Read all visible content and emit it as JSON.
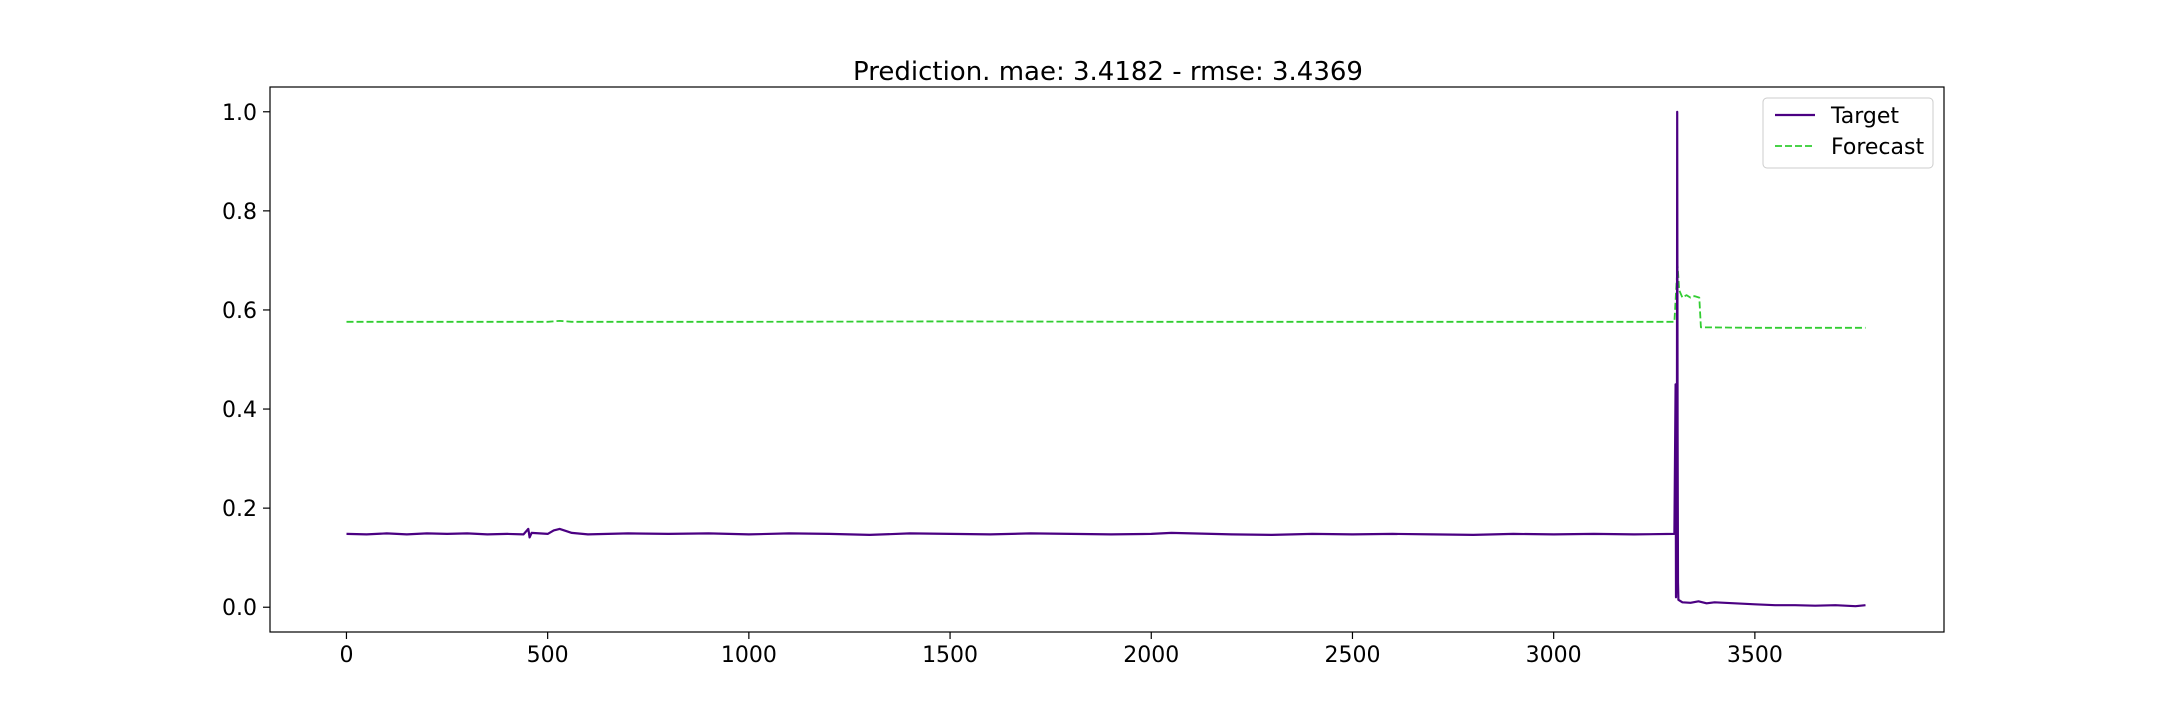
{
  "chart_data": {
    "type": "line",
    "title": "Prediction. mae: 3.4182 - rmse: 3.4369",
    "xlabel": "",
    "ylabel": "",
    "xlim": [
      -190,
      3970
    ],
    "ylim": [
      -0.05,
      1.05
    ],
    "x_ticks": [
      0,
      500,
      1000,
      1500,
      2000,
      2500,
      3000,
      3500
    ],
    "y_ticks": [
      0.0,
      0.2,
      0.4,
      0.6,
      0.8,
      1.0
    ],
    "x_tick_labels": [
      "0",
      "500",
      "1000",
      "1500",
      "2000",
      "2500",
      "3000",
      "3500"
    ],
    "y_tick_labels": [
      "0.0",
      "0.2",
      "0.4",
      "0.6",
      "0.8",
      "1.0"
    ],
    "grid": false,
    "legend_position": "top-right",
    "series": [
      {
        "name": "Target",
        "color": "#4b0082",
        "style": "solid",
        "points": [
          [
            0,
            0.148
          ],
          [
            50,
            0.147
          ],
          [
            100,
            0.149
          ],
          [
            150,
            0.147
          ],
          [
            200,
            0.149
          ],
          [
            250,
            0.148
          ],
          [
            300,
            0.149
          ],
          [
            350,
            0.147
          ],
          [
            400,
            0.148
          ],
          [
            440,
            0.147
          ],
          [
            452,
            0.158
          ],
          [
            455,
            0.141
          ],
          [
            460,
            0.15
          ],
          [
            500,
            0.148
          ],
          [
            515,
            0.155
          ],
          [
            530,
            0.158
          ],
          [
            545,
            0.154
          ],
          [
            560,
            0.15
          ],
          [
            600,
            0.147
          ],
          [
            700,
            0.149
          ],
          [
            800,
            0.148
          ],
          [
            900,
            0.149
          ],
          [
            1000,
            0.147
          ],
          [
            1100,
            0.149
          ],
          [
            1200,
            0.148
          ],
          [
            1300,
            0.146
          ],
          [
            1400,
            0.149
          ],
          [
            1500,
            0.148
          ],
          [
            1600,
            0.147
          ],
          [
            1700,
            0.149
          ],
          [
            1800,
            0.148
          ],
          [
            1900,
            0.147
          ],
          [
            2000,
            0.148
          ],
          [
            2050,
            0.15
          ],
          [
            2100,
            0.149
          ],
          [
            2200,
            0.147
          ],
          [
            2300,
            0.146
          ],
          [
            2400,
            0.148
          ],
          [
            2500,
            0.147
          ],
          [
            2600,
            0.148
          ],
          [
            2700,
            0.147
          ],
          [
            2800,
            0.146
          ],
          [
            2900,
            0.148
          ],
          [
            3000,
            0.147
          ],
          [
            3100,
            0.148
          ],
          [
            3200,
            0.147
          ],
          [
            3300,
            0.148
          ],
          [
            3303,
            0.45
          ],
          [
            3304,
            0.02
          ],
          [
            3305,
            0.28
          ],
          [
            3306,
            0.03
          ],
          [
            3307,
            1.0
          ],
          [
            3308,
            0.35
          ],
          [
            3309,
            0.05
          ],
          [
            3310,
            0.015
          ],
          [
            3320,
            0.01
          ],
          [
            3340,
            0.009
          ],
          [
            3360,
            0.012
          ],
          [
            3380,
            0.008
          ],
          [
            3400,
            0.01
          ],
          [
            3450,
            0.008
          ],
          [
            3500,
            0.006
          ],
          [
            3550,
            0.004
          ],
          [
            3600,
            0.004
          ],
          [
            3650,
            0.003
          ],
          [
            3700,
            0.004
          ],
          [
            3750,
            0.002
          ],
          [
            3775,
            0.004
          ]
        ]
      },
      {
        "name": "Forecast",
        "color": "#32cd32",
        "style": "dashed",
        "points": [
          [
            0,
            0.576
          ],
          [
            500,
            0.576
          ],
          [
            530,
            0.578
          ],
          [
            560,
            0.576
          ],
          [
            1000,
            0.576
          ],
          [
            1500,
            0.577
          ],
          [
            2000,
            0.576
          ],
          [
            2500,
            0.576
          ],
          [
            3000,
            0.576
          ],
          [
            3300,
            0.576
          ],
          [
            3305,
            0.65
          ],
          [
            3308,
            0.69
          ],
          [
            3312,
            0.64
          ],
          [
            3320,
            0.625
          ],
          [
            3330,
            0.63
          ],
          [
            3340,
            0.625
          ],
          [
            3350,
            0.628
          ],
          [
            3362,
            0.625
          ],
          [
            3366,
            0.565
          ],
          [
            3500,
            0.564
          ],
          [
            3775,
            0.564
          ]
        ]
      }
    ]
  }
}
